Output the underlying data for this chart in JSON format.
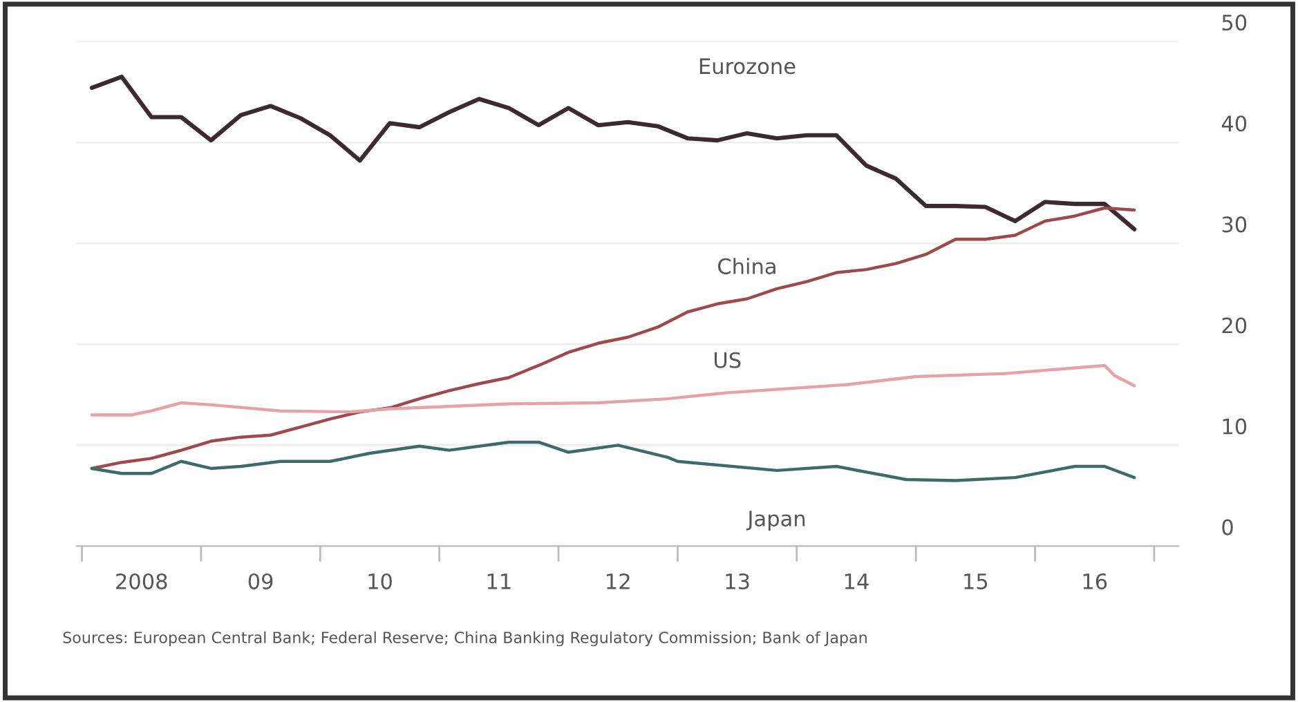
{
  "chart_data": {
    "type": "line",
    "x": [
      "2008-02",
      "2008-05",
      "2008-08",
      "2008-11",
      "2009-02",
      "2009-05",
      "2009-08",
      "2009-11",
      "2010-02",
      "2010-05",
      "2010-08",
      "2010-11",
      "2011-02",
      "2011-05",
      "2011-08",
      "2011-11",
      "2012-02",
      "2012-05",
      "2012-08",
      "2012-11",
      "2013-02",
      "2013-05",
      "2013-08",
      "2013-11",
      "2014-02",
      "2014-05",
      "2014-08",
      "2014-11",
      "2015-02",
      "2015-05",
      "2015-08",
      "2015-11",
      "2016-02",
      "2016-05",
      "2016-08",
      "2016-11"
    ],
    "series": [
      {
        "name": "Eurozone",
        "color": "#3b2a31",
        "values": [
          45.4,
          46.5,
          42.5,
          42.5,
          40.2,
          42.7,
          43.6,
          42.4,
          40.7,
          38.2,
          41.9,
          41.5,
          43.0,
          44.3,
          43.4,
          41.7,
          43.4,
          41.7,
          42.0,
          41.6,
          40.4,
          40.2,
          40.9,
          40.4,
          40.7,
          40.7,
          37.7,
          36.4,
          33.7,
          33.7,
          33.6,
          32.2,
          34.1,
          33.9,
          33.9,
          31.4
        ]
      },
      {
        "name": "China",
        "color": "#9c4a4c",
        "values": [
          7.7,
          8.3,
          8.7,
          9.5,
          10.4,
          10.8,
          11.0,
          11.8,
          12.6,
          13.3,
          13.7,
          14.6,
          15.4,
          16.1,
          16.7,
          17.9,
          19.2,
          20.1,
          20.7,
          21.7,
          23.2,
          24.0,
          24.5,
          25.5,
          26.2,
          27.1,
          27.4,
          28.0,
          28.9,
          30.4,
          30.4,
          30.8,
          32.2,
          32.7,
          33.5,
          33.3
        ]
      },
      {
        "name": "US",
        "color": "#e6a3a6",
        "x": [
          "2008-02",
          "2008-06",
          "2008-08",
          "2008-11",
          "2009-02",
          "2009-09",
          "2010-04",
          "2010-08",
          "2011-01",
          "2011-08",
          "2012-05",
          "2012-12",
          "2013-06",
          "2014-06",
          "2015-01",
          "2015-10",
          "2016-08",
          "2016-09",
          "2016-11"
        ],
        "values": [
          13.0,
          13.0,
          13.4,
          14.2,
          14.0,
          13.4,
          13.3,
          13.6,
          13.8,
          14.1,
          14.2,
          14.6,
          15.2,
          16.0,
          16.8,
          17.1,
          17.9,
          16.9,
          15.9
        ]
      },
      {
        "name": "Japan",
        "color": "#3f6a6a",
        "x": [
          "2008-02",
          "2008-05",
          "2008-08",
          "2008-11",
          "2009-02",
          "2009-05",
          "2009-09",
          "2010-02",
          "2010-06",
          "2010-11",
          "2011-02",
          "2011-08",
          "2011-11",
          "2012-02",
          "2012-07",
          "2012-12",
          "2013-01",
          "2013-11",
          "2014-05",
          "2014-12",
          "2015-05",
          "2015-11",
          "2016-05",
          "2016-08",
          "2016-11"
        ],
        "values": [
          7.7,
          7.2,
          7.2,
          8.4,
          7.7,
          7.9,
          8.4,
          8.4,
          9.2,
          9.9,
          9.5,
          10.3,
          10.3,
          9.3,
          10.0,
          8.8,
          8.4,
          7.5,
          7.9,
          6.6,
          6.5,
          6.8,
          7.9,
          7.9,
          6.8
        ]
      }
    ],
    "xlim": [
      "2007-12-15",
      "2017-03-15"
    ],
    "xticks": [
      {
        "value": "2008-01-01",
        "label": null
      },
      {
        "value": "2008-07-01",
        "label": "2008"
      },
      {
        "value": "2009-01-01",
        "label": null
      },
      {
        "value": "2009-07-01",
        "label": "09"
      },
      {
        "value": "2010-01-01",
        "label": null
      },
      {
        "value": "2010-07-01",
        "label": "10"
      },
      {
        "value": "2011-01-01",
        "label": null
      },
      {
        "value": "2011-07-01",
        "label": "11"
      },
      {
        "value": "2012-01-01",
        "label": null
      },
      {
        "value": "2012-07-01",
        "label": "12"
      },
      {
        "value": "2013-01-01",
        "label": null
      },
      {
        "value": "2013-07-01",
        "label": "13"
      },
      {
        "value": "2014-01-01",
        "label": null
      },
      {
        "value": "2014-07-01",
        "label": "14"
      },
      {
        "value": "2015-01-01",
        "label": null
      },
      {
        "value": "2015-07-01",
        "label": "15"
      },
      {
        "value": "2016-01-01",
        "label": null
      },
      {
        "value": "2016-07-01",
        "label": "16"
      },
      {
        "value": "2017-01-01",
        "label": null
      }
    ],
    "ylim": [
      0,
      50
    ],
    "yticks": [
      0,
      10,
      20,
      30,
      40,
      50
    ],
    "grid": "y",
    "legend": false,
    "marker": "none",
    "line_style": "solid",
    "annotations": [
      "Sources: European Central Bank; Federal Reserve; China Banking Regulatory Commission; Bank of Japan"
    ]
  }
}
